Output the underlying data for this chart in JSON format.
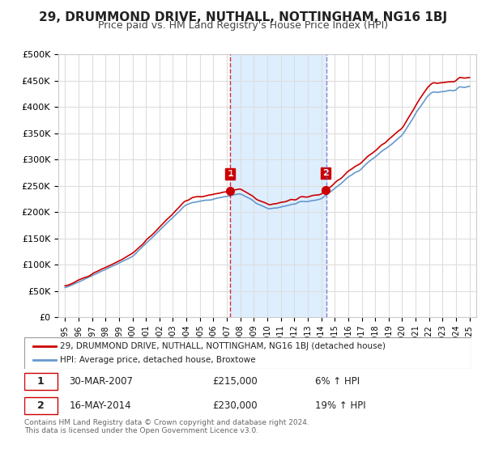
{
  "title": "29, DRUMMOND DRIVE, NUTHALL, NOTTINGHAM, NG16 1BJ",
  "subtitle": "Price paid vs. HM Land Registry's House Price Index (HPI)",
  "legend_line1": "29, DRUMMOND DRIVE, NUTHALL, NOTTINGHAM, NG16 1BJ (detached house)",
  "legend_line2": "HPI: Average price, detached house, Broxtowe",
  "footer": "Contains HM Land Registry data © Crown copyright and database right 2024.\nThis data is licensed under the Open Government Licence v3.0.",
  "transaction1": {
    "label": "1",
    "date": "30-MAR-2007",
    "price": "£215,000",
    "hpi": "6% ↑ HPI"
  },
  "transaction2": {
    "label": "2",
    "date": "16-MAY-2014",
    "price": "£230,000",
    "hpi": "19% ↑ HPI"
  },
  "sale1_year": 2007.25,
  "sale1_value": 215000,
  "sale2_year": 2014.37,
  "sale2_value": 230000,
  "ylim": [
    0,
    500000
  ],
  "yticks": [
    0,
    50000,
    100000,
    150000,
    200000,
    250000,
    300000,
    350000,
    400000,
    450000,
    500000
  ],
  "xlim_start": 1994.5,
  "xlim_end": 2025.5,
  "background_color": "#ffffff",
  "plot_bg_color": "#ffffff",
  "grid_color": "#dddddd",
  "red_color": "#cc0000",
  "blue_color": "#6699cc",
  "shade_color": "#ddeeff",
  "dashed_color": "#cc0000",
  "title_fontsize": 11,
  "subtitle_fontsize": 9
}
